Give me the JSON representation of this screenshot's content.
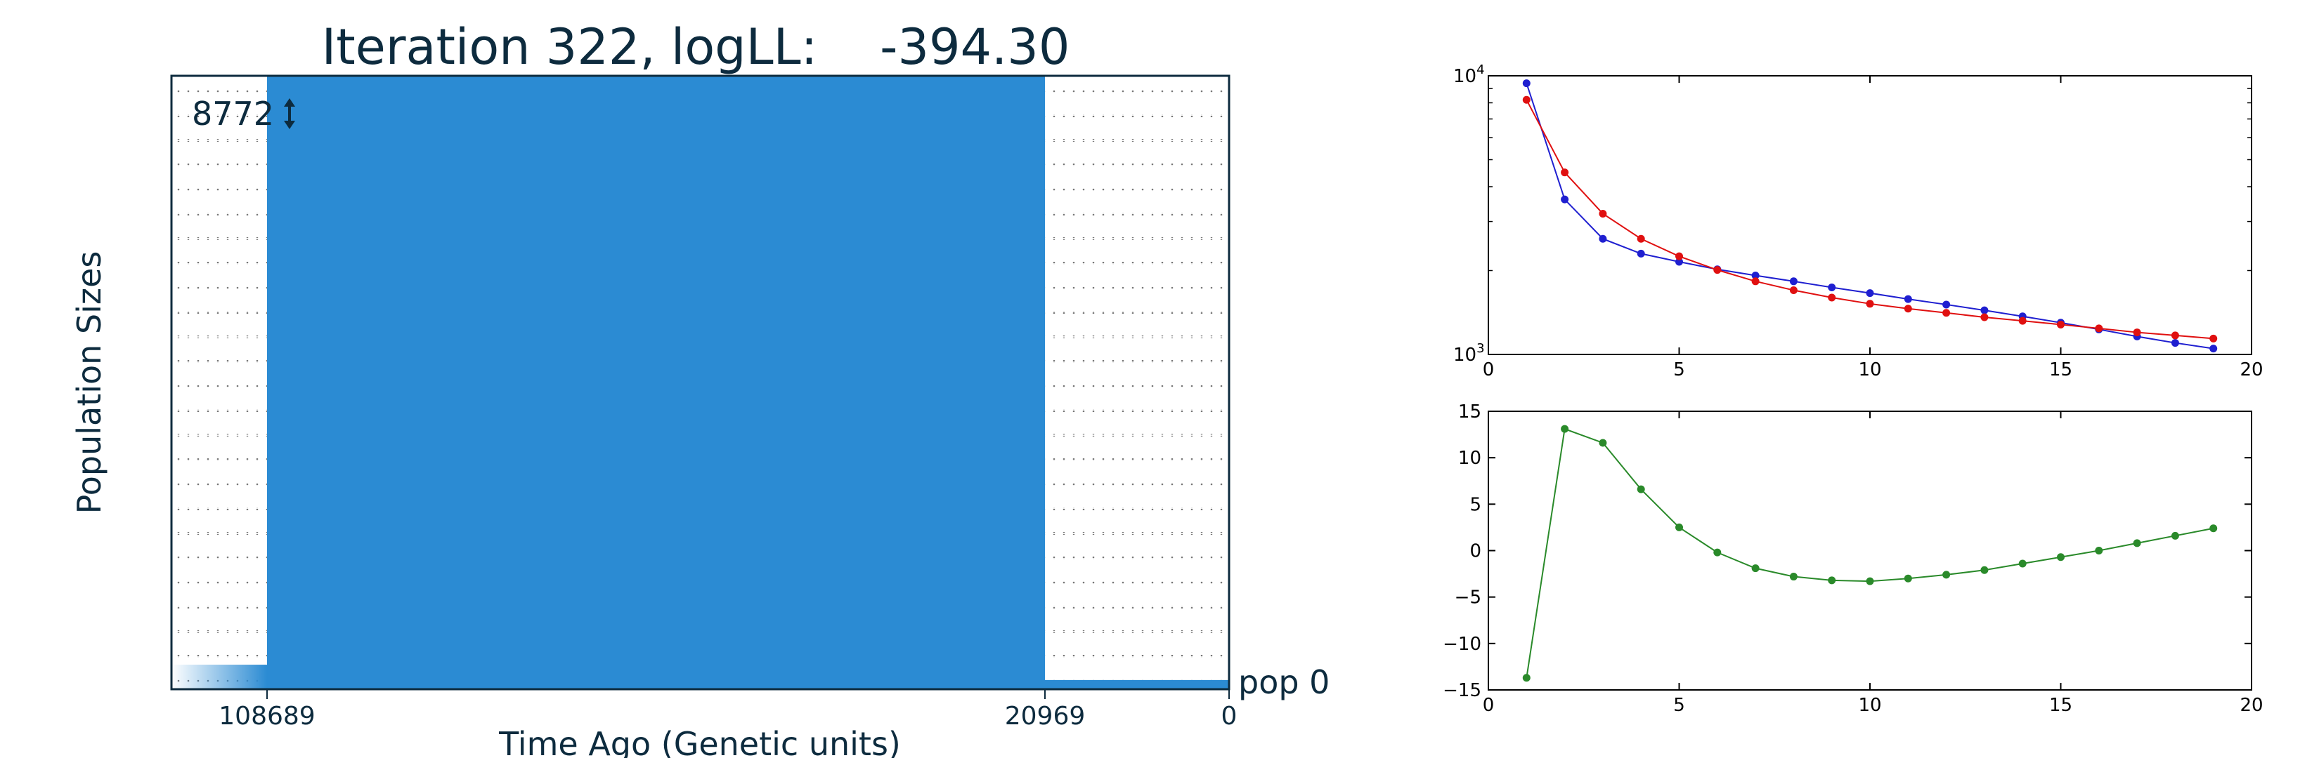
{
  "main_title": "Iteration 322, logLL:    -394.30",
  "colors": {
    "population_fill": "#2b8bd3",
    "text": "#0d2b3e",
    "series_blue": "#1f1fd0",
    "series_red": "#e01010",
    "series_green": "#2a8a2a",
    "grid_dot": "#777777"
  },
  "chart_data": [
    {
      "type": "area",
      "ylabel": "Population Sizes",
      "xlabel": "Time Ago (Genetic units)",
      "x_tick_labels": [
        "108689",
        "20969",
        "0"
      ],
      "size_label": "8772",
      "size_marker_icon": "double-arrow-icon",
      "population_label": "pop 0",
      "grid": "dotted horizontal",
      "epochs": [
        {
          "from": 108689,
          "to": "older",
          "relative_height": 0.04
        },
        {
          "from": 20969,
          "to": 108689,
          "relative_height": 1.0
        },
        {
          "from": 0,
          "to": 20969,
          "relative_height": 0.015
        }
      ]
    },
    {
      "type": "line",
      "yscale": "log",
      "xlim": [
        0,
        20
      ],
      "ylim": [
        1000,
        10000
      ],
      "x_ticks": [
        0,
        5,
        10,
        15,
        20
      ],
      "y_tick_labels": [
        {
          "base": "10",
          "exp": "3"
        },
        {
          "base": "10",
          "exp": "4"
        }
      ],
      "x": [
        1,
        2,
        3,
        4,
        5,
        6,
        7,
        8,
        9,
        10,
        11,
        12,
        13,
        14,
        15,
        16,
        17,
        18,
        19
      ],
      "series": [
        {
          "color": "blue",
          "values": [
            9400,
            3600,
            2600,
            2300,
            2150,
            2020,
            1920,
            1830,
            1740,
            1660,
            1580,
            1510,
            1440,
            1370,
            1300,
            1230,
            1160,
            1100,
            1050
          ]
        },
        {
          "color": "red",
          "values": [
            8200,
            4500,
            3200,
            2600,
            2250,
            2010,
            1830,
            1700,
            1600,
            1520,
            1460,
            1410,
            1360,
            1320,
            1280,
            1240,
            1200,
            1170,
            1140
          ]
        }
      ]
    },
    {
      "type": "line",
      "xlim": [
        0,
        20
      ],
      "ylim": [
        -15,
        15
      ],
      "x_ticks": [
        0,
        5,
        10,
        15,
        20
      ],
      "y_ticks": [
        -15,
        -10,
        -5,
        0,
        5,
        10,
        15
      ],
      "x": [
        1,
        2,
        3,
        4,
        5,
        6,
        7,
        8,
        9,
        10,
        11,
        12,
        13,
        14,
        15,
        16,
        17,
        18,
        19
      ],
      "series": [
        {
          "color": "green",
          "values": [
            -13.7,
            13.1,
            11.6,
            6.6,
            2.5,
            -0.2,
            -1.9,
            -2.8,
            -3.2,
            -3.3,
            -3.0,
            -2.6,
            -2.1,
            -1.4,
            -0.7,
            0.0,
            0.8,
            1.6,
            2.4
          ]
        }
      ]
    }
  ]
}
